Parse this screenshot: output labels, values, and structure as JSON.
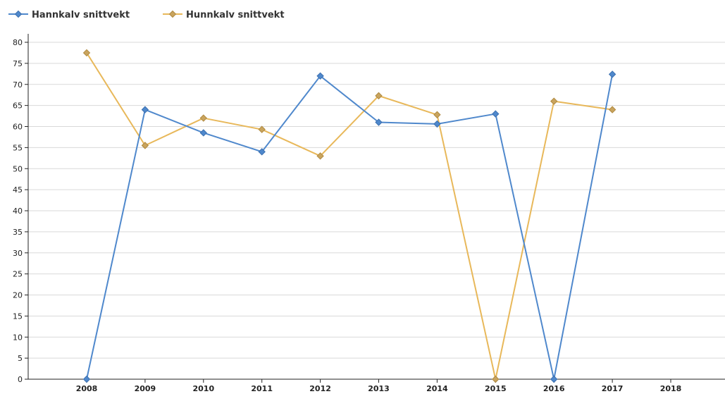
{
  "chart_data": {
    "type": "line",
    "title": "",
    "xlabel": "",
    "ylabel": "",
    "categories": [
      "2008",
      "2009",
      "2010",
      "2011",
      "2012",
      "2013",
      "2014",
      "2015",
      "2016",
      "2017",
      "2018"
    ],
    "ylim": [
      0,
      80
    ],
    "yticks": [
      0,
      5,
      10,
      15,
      20,
      25,
      30,
      35,
      40,
      45,
      50,
      55,
      60,
      65,
      70,
      75,
      80
    ],
    "grid": true,
    "legend_position": "top-left",
    "series": [
      {
        "name": "Hannkalv snittvekt",
        "color": "#4f88cc",
        "marker": "diamond",
        "values": [
          0,
          64,
          58.5,
          54,
          72,
          61,
          60.6,
          63,
          0,
          72.4,
          null
        ]
      },
      {
        "name": "Hunnkalv snittvekt",
        "color": "#e8b85a",
        "marker_fill": "#c9a45e",
        "marker": "diamond",
        "values": [
          77.5,
          55.5,
          62,
          59.3,
          53,
          67.3,
          62.8,
          0,
          66,
          64,
          null
        ]
      }
    ]
  }
}
